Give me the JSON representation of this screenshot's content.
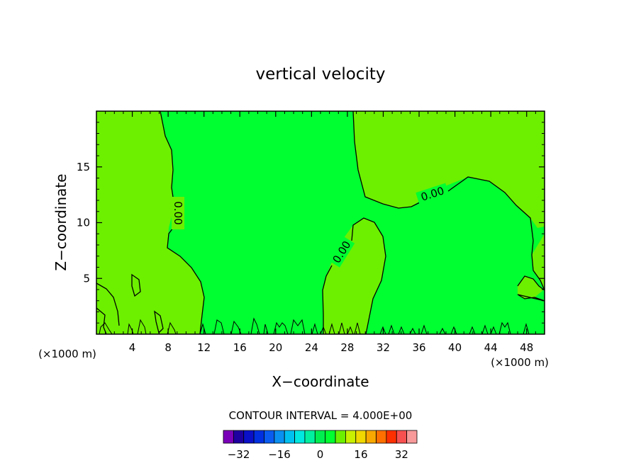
{
  "chart_data": {
    "type": "contour",
    "title": "vertical velocity",
    "xlabel": "X−coordinate",
    "ylabel": "Z−coordinate",
    "x_unit_left": "(×1000 m)",
    "x_unit_right": "(×1000 m)",
    "xlim": [
      0,
      50
    ],
    "ylim": [
      0,
      20
    ],
    "x_ticks": [
      4,
      8,
      12,
      16,
      20,
      24,
      28,
      32,
      36,
      40,
      44,
      48
    ],
    "x_tick_labels": [
      "4",
      "8",
      "12",
      "16",
      "20",
      "24",
      "28",
      "32",
      "36",
      "40",
      "44",
      "48"
    ],
    "y_ticks": [
      5,
      10,
      15
    ],
    "y_tick_labels": [
      "5",
      "10",
      "15"
    ],
    "contour_labels": [
      "0.00",
      "0.00",
      "0.00"
    ],
    "contour_interval_text": "CONTOUR INTERVAL =  4.000E+00",
    "colorbar": {
      "levels": [
        -36,
        -32,
        -28,
        -24,
        -20,
        -16,
        -12,
        -8,
        -4,
        0,
        4,
        8,
        12,
        16,
        20,
        24,
        28,
        32,
        36
      ],
      "tick_values": [
        -32,
        -16,
        0,
        16,
        32
      ],
      "tick_labels": [
        "−32",
        "−16",
        "0",
        "16",
        "32"
      ],
      "colors": [
        "#7a00b8",
        "#1e00a0",
        "#0a10c8",
        "#0030e0",
        "#0a5cf0",
        "#0a90f0",
        "#00c0f0",
        "#00e8e0",
        "#00f0a0",
        "#00ee50",
        "#00ff30",
        "#6cf000",
        "#c8f000",
        "#f0d800",
        "#f8a800",
        "#ff7000",
        "#ff3000",
        "#f85050",
        "#f89a9a"
      ]
    },
    "fill_colors": {
      "near_zero": "#00ff30",
      "slightly_positive": "#6cf000",
      "slightly_negative": "#00ee50"
    },
    "grid": false,
    "legend": "bottom-center colorbar"
  }
}
